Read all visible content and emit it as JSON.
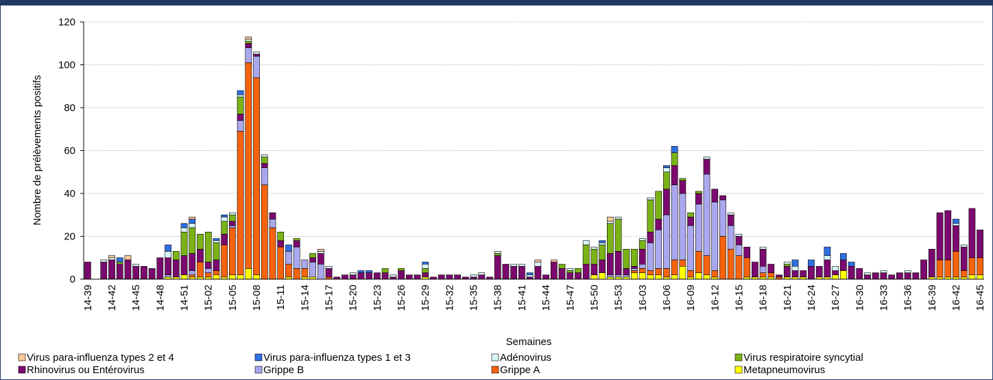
{
  "chart_data": {
    "type": "stacked_bar",
    "x_label": "Semaines",
    "y_label": "Nombre de prélèvements positifs",
    "ylim": [
      0,
      120
    ],
    "yticks": [
      0,
      20,
      40,
      60,
      80,
      100,
      120
    ],
    "grid": true,
    "categories": [
      "14-39",
      null,
      null,
      "14-42",
      null,
      null,
      "14-45",
      null,
      null,
      "14-48",
      null,
      null,
      "14-51",
      null,
      null,
      "15-02",
      null,
      null,
      "15-05",
      null,
      null,
      "15-08",
      null,
      null,
      "15-11",
      null,
      null,
      "15-14",
      null,
      null,
      "15-17",
      null,
      null,
      "15-20",
      null,
      null,
      "15-23",
      null,
      null,
      "15-26",
      null,
      null,
      "15-29",
      null,
      null,
      "15-32",
      null,
      null,
      "15-35",
      null,
      null,
      "15-38",
      null,
      null,
      "15-41",
      null,
      null,
      "15-44",
      null,
      null,
      "15-47",
      null,
      null,
      "15-50",
      null,
      null,
      "15-53",
      null,
      null,
      "16-03",
      null,
      null,
      "16-06",
      null,
      null,
      "16-09",
      null,
      null,
      "16-12",
      null,
      null,
      "16-15",
      null,
      null,
      "16-18",
      null,
      null,
      "16-21",
      null,
      null,
      "16-24",
      null,
      null,
      "16-27",
      null,
      null,
      "16-30",
      null,
      null,
      "16-33",
      null,
      null,
      "16-36",
      null,
      null,
      "16-39",
      null,
      null,
      "16-42",
      null,
      null,
      "16-45"
    ],
    "series": [
      {
        "name": "Virus para-influenza types 2 et 4",
        "color": "#fbc99a",
        "values": [
          0,
          0,
          0,
          1,
          0,
          2,
          0,
          0,
          0,
          0,
          0,
          0,
          0,
          1,
          0,
          0,
          0,
          0,
          0,
          0,
          1,
          0,
          0,
          0,
          0,
          0,
          0,
          0,
          0,
          1,
          0,
          0,
          0,
          0,
          0,
          0,
          0,
          0,
          0,
          0,
          0,
          0,
          0,
          0,
          0,
          0,
          0,
          0,
          0,
          0,
          0,
          0,
          0,
          0,
          0,
          0,
          1,
          0,
          1,
          0,
          0,
          0,
          0,
          0,
          0,
          2,
          0,
          0,
          0,
          0,
          0,
          0,
          0,
          0,
          0,
          0,
          0,
          0,
          0,
          0,
          0,
          0,
          0,
          0,
          0,
          0,
          0,
          0,
          0,
          0,
          0,
          0,
          0,
          0,
          0,
          0,
          0,
          0,
          0,
          0,
          0,
          0,
          0,
          0,
          0,
          0,
          0,
          0,
          0,
          0,
          0,
          0
        ]
      },
      {
        "name": "Virus para-influenza types 1 et 3",
        "color": "#2f6fe0",
        "values": [
          0,
          0,
          0,
          0,
          2,
          0,
          0,
          0,
          0,
          0,
          3,
          0,
          2,
          2,
          0,
          0,
          1,
          1,
          0,
          2,
          0,
          0,
          0,
          0,
          0,
          3,
          0,
          0,
          0,
          0,
          0,
          0,
          0,
          0,
          1,
          1,
          0,
          0,
          0,
          0,
          0,
          0,
          1,
          0,
          0,
          0,
          0,
          0,
          0,
          0,
          0,
          0,
          0,
          0,
          0,
          1,
          0,
          0,
          0,
          0,
          0,
          0,
          0,
          0,
          1,
          0,
          0,
          0,
          0,
          0,
          0,
          0,
          1,
          3,
          0,
          0,
          0,
          0,
          0,
          0,
          0,
          0,
          0,
          0,
          0,
          0,
          0,
          0,
          3,
          0,
          3,
          0,
          4,
          0,
          3,
          2,
          0,
          0,
          0,
          0,
          0,
          0,
          0,
          0,
          0,
          0,
          0,
          0,
          2,
          0,
          0,
          0
        ]
      },
      {
        "name": "Adénovirus",
        "color": "#d8f5f5",
        "values": [
          0,
          0,
          1,
          1,
          0,
          0,
          1,
          0,
          0,
          0,
          3,
          0,
          2,
          2,
          0,
          0,
          1,
          2,
          1,
          1,
          1,
          1,
          1,
          0,
          0,
          0,
          0,
          0,
          0,
          1,
          1,
          0,
          0,
          1,
          0,
          0,
          0,
          0,
          1,
          0,
          0,
          0,
          2,
          0,
          0,
          0,
          0,
          0,
          1,
          1,
          0,
          1,
          0,
          1,
          1,
          1,
          2,
          0,
          0,
          0,
          1,
          0,
          2,
          1,
          1,
          1,
          1,
          0,
          0,
          1,
          1,
          0,
          2,
          0,
          0,
          0,
          0,
          1,
          0,
          0,
          1,
          1,
          0,
          0,
          1,
          0,
          0,
          1,
          2,
          0,
          0,
          0,
          2,
          2,
          0,
          0,
          0,
          1,
          0,
          1,
          0,
          0,
          1,
          0,
          0,
          0,
          0,
          0,
          1,
          1,
          0,
          0
        ]
      },
      {
        "name": "Virus respiratoire syncytial",
        "color": "#7ab317",
        "values": [
          0,
          0,
          0,
          0,
          1,
          0,
          0,
          0,
          0,
          0,
          0,
          4,
          11,
          12,
          7,
          14,
          8,
          6,
          3,
          8,
          1,
          0,
          3,
          0,
          4,
          0,
          1,
          0,
          2,
          0,
          0,
          0,
          0,
          0,
          0,
          0,
          0,
          2,
          0,
          1,
          0,
          0,
          2,
          0,
          0,
          0,
          0,
          0,
          0,
          0,
          0,
          1,
          0,
          0,
          0,
          0,
          0,
          0,
          0,
          2,
          1,
          2,
          9,
          7,
          7,
          14,
          15,
          9,
          8,
          4,
          15,
          13,
          8,
          6,
          1,
          2,
          1,
          0,
          0,
          0,
          0,
          0,
          0,
          0,
          0,
          0,
          0,
          1,
          0,
          0,
          0,
          0,
          0,
          0,
          0,
          0,
          0,
          0,
          0,
          0,
          0,
          0,
          0,
          0,
          0,
          0,
          0,
          0,
          0,
          0,
          0,
          0
        ]
      },
      {
        "name": "Rhinovirus ou Entérovirus",
        "color": "#7b0a6e",
        "values": [
          8,
          0,
          8,
          9,
          7,
          9,
          6,
          6,
          5,
          10,
          8,
          8,
          9,
          8,
          6,
          3,
          5,
          5,
          2,
          3,
          2,
          1,
          2,
          3,
          3,
          0,
          3,
          0,
          2,
          5,
          4,
          1,
          2,
          2,
          3,
          3,
          3,
          3,
          1,
          4,
          2,
          2,
          2,
          1,
          2,
          2,
          2,
          1,
          1,
          2,
          1,
          11,
          7,
          6,
          6,
          1,
          6,
          2,
          8,
          5,
          3,
          3,
          7,
          5,
          6,
          10,
          11,
          3,
          1,
          7,
          5,
          5,
          12,
          9,
          6,
          4,
          5,
          7,
          6,
          2,
          5,
          4,
          5,
          7,
          8,
          4,
          1,
          5,
          3,
          3,
          6,
          5,
          8,
          2,
          5,
          6,
          5,
          2,
          3,
          3,
          2,
          3,
          3,
          3,
          9,
          13,
          22,
          23,
          12,
          11,
          23,
          13
        ]
      },
      {
        "name": "Grippe B",
        "color": "#a9a8ee",
        "values": [
          0,
          0,
          0,
          0,
          0,
          0,
          0,
          0,
          0,
          0,
          1,
          0,
          0,
          2,
          0,
          2,
          0,
          0,
          1,
          5,
          7,
          10,
          8,
          4,
          0,
          6,
          10,
          4,
          7,
          7,
          0,
          0,
          0,
          0,
          0,
          0,
          0,
          0,
          0,
          0,
          0,
          0,
          0,
          0,
          0,
          0,
          0,
          0,
          0,
          0,
          0,
          0,
          0,
          0,
          0,
          0,
          0,
          0,
          0,
          0,
          0,
          0,
          0,
          0,
          0,
          1,
          1,
          1,
          1,
          2,
          13,
          18,
          25,
          35,
          31,
          21,
          22,
          38,
          32,
          17,
          11,
          5,
          0,
          0,
          3,
          0,
          0,
          0,
          0,
          0,
          0,
          0,
          0,
          0,
          0,
          0,
          0,
          0,
          0,
          0,
          0,
          0,
          0,
          0,
          0,
          0,
          0,
          0,
          0,
          0,
          0,
          0
        ]
      },
      {
        "name": "Grippe A",
        "color": "#f5630f",
        "values": [
          0,
          0,
          0,
          0,
          0,
          0,
          0,
          0,
          0,
          0,
          0,
          0,
          0,
          1,
          7,
          2,
          2,
          15,
          22,
          67,
          96,
          92,
          44,
          24,
          15,
          6,
          5,
          4,
          0,
          0,
          1,
          0,
          0,
          0,
          0,
          0,
          0,
          0,
          0,
          0,
          0,
          0,
          0,
          0,
          0,
          0,
          0,
          0,
          0,
          0,
          0,
          0,
          0,
          0,
          0,
          0,
          0,
          0,
          0,
          0,
          0,
          0,
          0,
          0,
          0,
          0,
          0,
          0,
          1,
          2,
          2,
          3,
          4,
          7,
          3,
          3,
          10,
          9,
          3,
          20,
          14,
          11,
          9,
          0,
          2,
          2,
          1,
          0,
          0,
          0,
          0,
          0,
          0,
          0,
          0,
          0,
          0,
          0,
          0,
          0,
          0,
          0,
          0,
          0,
          0,
          0,
          8,
          8,
          12,
          3,
          8,
          8
        ]
      },
      {
        "name": "Metapneumovirus",
        "color": "#ffff00",
        "values": [
          0,
          0,
          0,
          0,
          0,
          0,
          0,
          0,
          0,
          0,
          1,
          1,
          2,
          1,
          1,
          1,
          2,
          1,
          2,
          2,
          5,
          2,
          0,
          0,
          0,
          1,
          0,
          1,
          1,
          0,
          0,
          0,
          0,
          0,
          0,
          0,
          0,
          0,
          0,
          0,
          0,
          0,
          1,
          0,
          0,
          0,
          0,
          0,
          0,
          0,
          0,
          0,
          0,
          0,
          0,
          0,
          0,
          0,
          0,
          0,
          0,
          0,
          0,
          2,
          3,
          1,
          1,
          1,
          3,
          3,
          2,
          2,
          1,
          2,
          6,
          1,
          3,
          2,
          1,
          0,
          0,
          0,
          1,
          1,
          1,
          1,
          0,
          1,
          1,
          1,
          0,
          1,
          1,
          2,
          4,
          0,
          0,
          0,
          0,
          0,
          0,
          0,
          0,
          0,
          0,
          1,
          1,
          1,
          1,
          1,
          2,
          2
        ]
      }
    ]
  }
}
